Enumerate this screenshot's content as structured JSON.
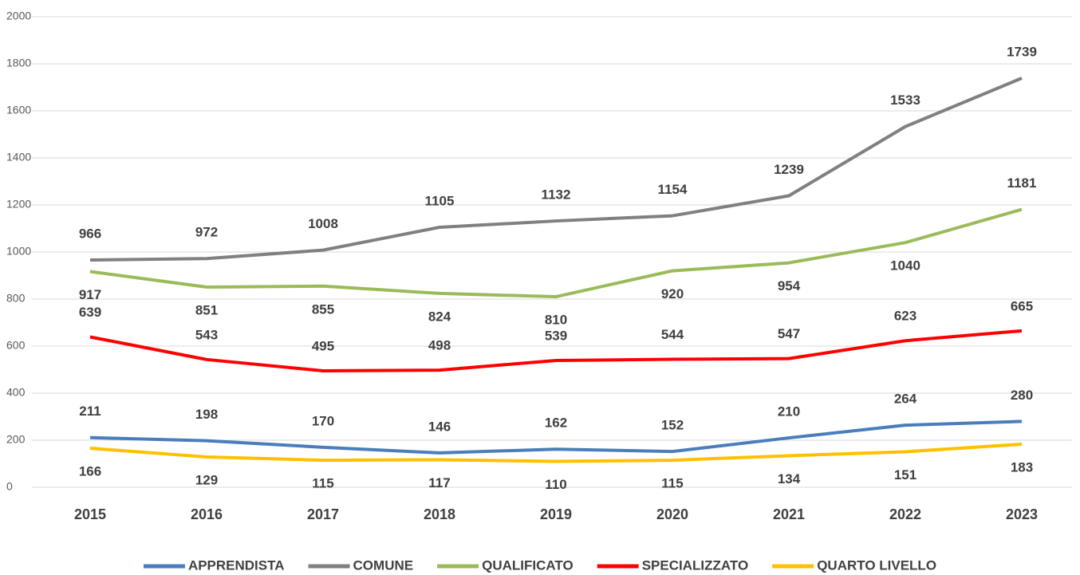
{
  "chart_data": {
    "type": "line",
    "categories": [
      "2015",
      "2016",
      "2017",
      "2018",
      "2019",
      "2020",
      "2021",
      "2022",
      "2023"
    ],
    "series": [
      {
        "name": "APPRENDISTA",
        "color": "#4a7ebb",
        "values": [
          211,
          198,
          170,
          146,
          162,
          152,
          210,
          264,
          280
        ]
      },
      {
        "name": "COMUNE",
        "color": "#808080",
        "values": [
          966,
          972,
          1008,
          1105,
          1132,
          1154,
          1239,
          1533,
          1739
        ]
      },
      {
        "name": "QUALIFICATO",
        "color": "#9bbb59",
        "values": [
          917,
          851,
          855,
          824,
          810,
          920,
          954,
          1040,
          1181
        ]
      },
      {
        "name": "SPECIALIZZATO",
        "color": "#ff0000",
        "values": [
          639,
          543,
          495,
          498,
          539,
          544,
          547,
          623,
          665
        ]
      },
      {
        "name": "QUARTO LIVELLO",
        "color": "#ffc000",
        "values": [
          166,
          129,
          115,
          117,
          110,
          115,
          134,
          151,
          183
        ]
      }
    ],
    "ylim": [
      0,
      2000
    ],
    "yticks": [
      0,
      200,
      400,
      600,
      800,
      1000,
      1200,
      1400,
      1600,
      1800,
      2000
    ],
    "grid": true,
    "legend": "bottom"
  }
}
